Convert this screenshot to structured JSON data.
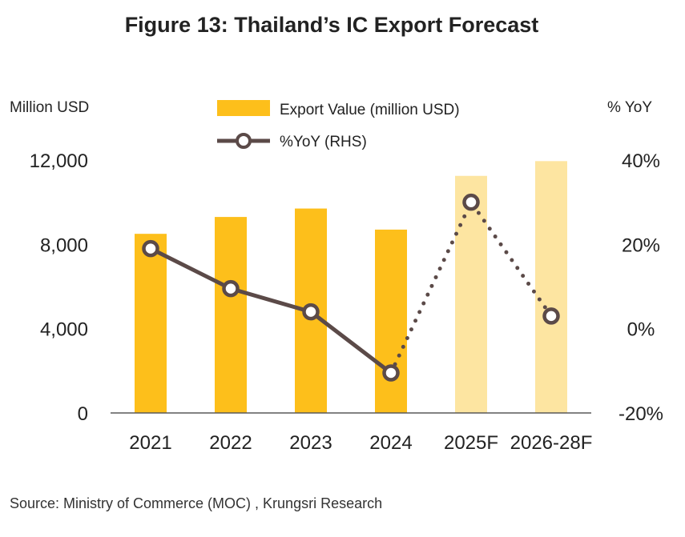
{
  "chart_data": {
    "type": "bar",
    "title": "Figure 13: Thailand’s IC Export Forecast",
    "y_left_label": "Million USD",
    "y_right_label": "% YoY",
    "categories": [
      "2021",
      "2022",
      "2023",
      "2024",
      "2025F",
      "2026-28F"
    ],
    "forecast_categories": [
      "2025F",
      "2026-28F"
    ],
    "y_left_ticks": [
      "0",
      "4,000",
      "8,000",
      "12,000"
    ],
    "y_right_ticks": [
      "-20%",
      "0%",
      "20%",
      "40%"
    ],
    "ylim_left": [
      0,
      12000
    ],
    "ylim_right": [
      -20,
      40
    ],
    "series": [
      {
        "name": "Export Value (million USD)",
        "kind": "bar",
        "axis": "left",
        "values": [
          8500,
          9300,
          9700,
          8700,
          11250,
          11950
        ],
        "color": "#FDBF1B",
        "forecast_color": "#FDE5A1"
      },
      {
        "name": "%YoY (RHS)",
        "kind": "line",
        "axis": "right",
        "values": [
          19,
          9.5,
          4,
          -10.5,
          30,
          3
        ],
        "color": "#5B4A48",
        "forecast_style": "dotted"
      }
    ],
    "legend_position": "top-center",
    "grid": false
  },
  "source": "Source: Ministry of Commerce (MOC) , Krungsri Research"
}
